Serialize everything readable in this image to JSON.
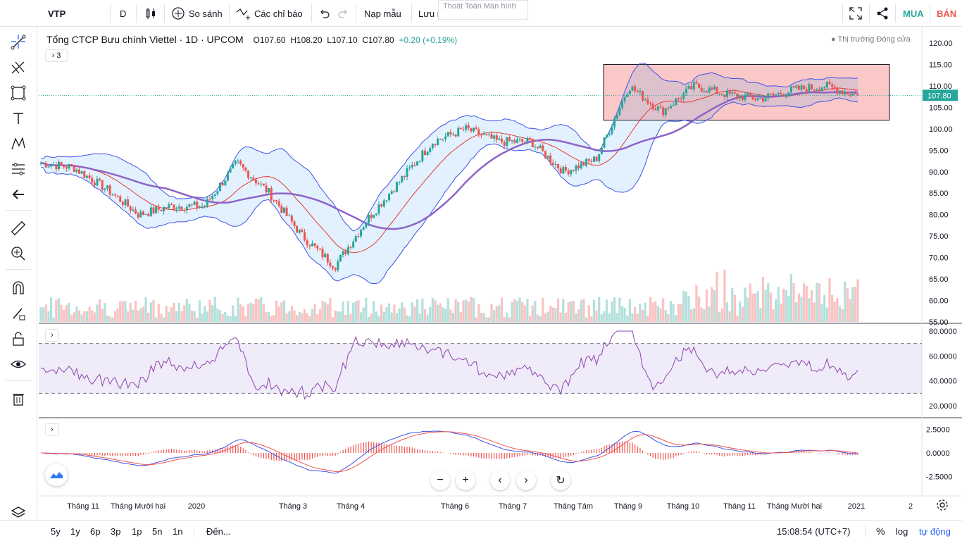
{
  "toolbar": {
    "symbol": "VTP",
    "interval": "D",
    "compare": "So sánh",
    "indicators": "Các chỉ báo",
    "templates": "Nạp mẫu",
    "save": "Lưu mẫu",
    "fullscreen_tooltip": "Thoát Toàn Màn hình",
    "buy": "MUA",
    "sell": "BÁN",
    "colors": {
      "buy": "#26a69a",
      "sell": "#ef5350"
    }
  },
  "legend": {
    "title": "Tổng CTCP Bưu chính Viettel · 1D · UPCOM",
    "open": "O107.60",
    "high": "H108.20",
    "low": "L107.10",
    "close": "C107.80",
    "change": "+0.20 (+0.19%)",
    "indicator_count": "3",
    "market_status": "● Thị trường Đóng cửa"
  },
  "price_axis": {
    "labels": [
      "120.00",
      "115.00",
      "110.00",
      "105.00",
      "100.00",
      "95.00",
      "90.00",
      "85.00",
      "80.00",
      "75.00",
      "70.00",
      "65.00",
      "60.00",
      "55.00"
    ],
    "last_price": "107.80"
  },
  "rsi_axis": {
    "labels": [
      "80.0000",
      "60.0000",
      "40.0000",
      "20.0000"
    ]
  },
  "macd_axis": {
    "labels": [
      "2.5000",
      "0.0000",
      "-2.5000"
    ]
  },
  "time_axis": {
    "labels": [
      "Tháng 11",
      "Tháng Mười hai",
      "2020",
      "Tháng 3",
      "Tháng 4",
      "Tháng 6",
      "Tháng 7",
      "Tháng Tám",
      "Tháng 9",
      "Tháng 10",
      "Tháng 11",
      "Tháng Mười hai",
      "2021",
      "2"
    ]
  },
  "bottom": {
    "ranges": [
      "5y",
      "1y",
      "6p",
      "3p",
      "1p",
      "5n",
      "1n"
    ],
    "goto": "Đến...",
    "clock": "15:08:54 (UTC+7)",
    "percent": "%",
    "log": "log",
    "auto": "tự động"
  },
  "chart_data": {
    "type": "candlestick",
    "symbol": "VTP",
    "price_range": [
      55,
      122
    ],
    "anchors_close": [
      [
        "Tháng 10 (start)",
        92
      ],
      [
        "Tháng 11",
        91
      ],
      [
        "Tháng Mười hai",
        86
      ],
      [
        "late Dec",
        80
      ],
      [
        "2020",
        82
      ],
      [
        "Jan mid",
        82
      ],
      [
        "Feb mid",
        92
      ],
      [
        "Tháng 3",
        85
      ],
      [
        "Mar mid",
        75
      ],
      [
        "Tháng 4",
        68
      ],
      [
        "Apr mid",
        79
      ],
      [
        "May",
        88
      ],
      [
        "Tháng 6",
        97
      ],
      [
        "Jun mid",
        100
      ],
      [
        "Tháng 7",
        97
      ],
      [
        "Jul mid",
        97
      ],
      [
        "Tháng Tám",
        90
      ],
      [
        "Aug late",
        93
      ],
      [
        "Tháng 9",
        110
      ],
      [
        "Sep mid",
        104
      ],
      [
        "Tháng 10",
        110
      ],
      [
        "Oct mid",
        108
      ],
      [
        "Tháng 11",
        107
      ],
      [
        "Nov mid",
        109
      ],
      [
        "Tháng Mười hai",
        110
      ],
      [
        "2021",
        107.8
      ]
    ],
    "rsi_range": [
      15,
      82
    ],
    "rsi_bands": [
      70,
      30
    ],
    "macd_range": [
      -4,
      4
    ]
  }
}
